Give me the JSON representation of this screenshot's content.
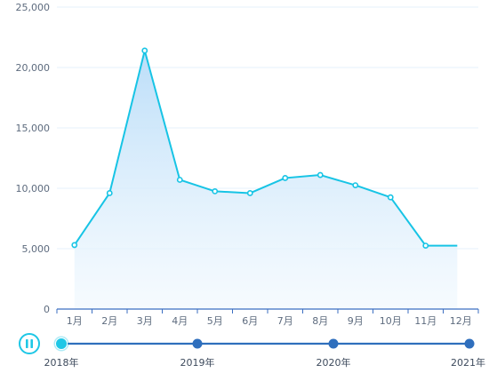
{
  "chart_data": {
    "type": "area",
    "categories": [
      "1月",
      "2月",
      "3月",
      "4月",
      "5月",
      "6月",
      "7月",
      "8月",
      "9月",
      "10月",
      "11月",
      "12月"
    ],
    "series": [
      {
        "values": [
          5300,
          9600,
          21400,
          10700,
          9750,
          9600,
          10850,
          11100,
          10250,
          9250,
          5250,
          null
        ]
      }
    ],
    "ylim": [
      0,
      25000
    ],
    "yticks": [
      "0",
      "5,000",
      "10,000",
      "15,000",
      "20,000",
      "25,000"
    ],
    "grid": true,
    "colors": {
      "line": "#17c4e5",
      "area_top": "#b8dcf8",
      "area_bottom": "#f0f8fe",
      "axis": "#3c6fc2",
      "grid": "#e6f2fb"
    }
  },
  "timeline": {
    "labels": [
      "2018年",
      "2019年",
      "2020年",
      "2021年"
    ],
    "current_index": 0,
    "play_state": "paused",
    "colors": {
      "track": "#2f6fbd",
      "node": "#2f6fbd",
      "current": "#1ec7e6"
    }
  }
}
